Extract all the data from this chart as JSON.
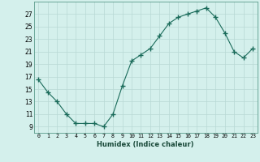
{
  "x": [
    0,
    1,
    2,
    3,
    4,
    5,
    6,
    7,
    8,
    9,
    10,
    11,
    12,
    13,
    14,
    15,
    16,
    17,
    18,
    19,
    20,
    21,
    22,
    23
  ],
  "y": [
    16.5,
    14.5,
    13.0,
    11.0,
    9.5,
    9.5,
    9.5,
    9.0,
    11.0,
    15.5,
    19.5,
    20.5,
    21.5,
    23.5,
    25.5,
    26.5,
    27.0,
    27.5,
    28.0,
    26.5,
    24.0,
    21.0,
    20.0,
    21.5
  ],
  "xlabel": "Humidex (Indice chaleur)",
  "ylim": [
    8,
    29
  ],
  "xlim": [
    -0.5,
    23.5
  ],
  "yticks": [
    9,
    11,
    13,
    15,
    17,
    19,
    21,
    23,
    25,
    27
  ],
  "xtick_labels": [
    "0",
    "1",
    "2",
    "3",
    "4",
    "5",
    "6",
    "7",
    "8",
    "9",
    "10",
    "11",
    "12",
    "13",
    "14",
    "15",
    "16",
    "17",
    "18",
    "19",
    "20",
    "21",
    "22",
    "23"
  ],
  "line_color": "#1a6b5a",
  "marker_color": "#1a6b5a",
  "bg_color": "#d4f0ec",
  "grid_color": "#b8d8d4",
  "xlabel_color": "#1a4a3a"
}
